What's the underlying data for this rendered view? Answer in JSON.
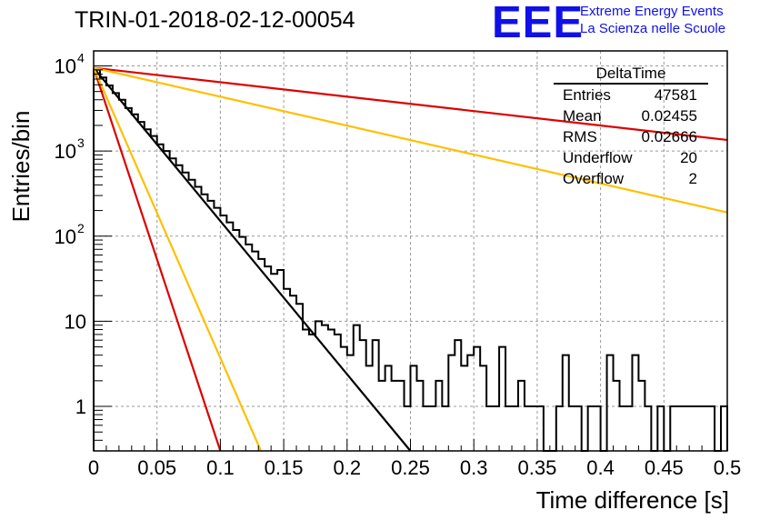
{
  "header": {
    "run_title": "TRIN-01-2018-02-12-00054",
    "logo_text": "EEE",
    "logo_line1": "Extreme Energy Events",
    "logo_line2": "La Scienza nelle Scuole",
    "logo_color": "#1010e8"
  },
  "stats_box": {
    "title": "DeltaTime",
    "rows": [
      {
        "label": "Entries",
        "value": "47581"
      },
      {
        "label": "Mean",
        "value": "0.02455"
      },
      {
        "label": "RMS",
        "value": "0.02666"
      },
      {
        "label": "Underflow",
        "value": "20"
      },
      {
        "label": "Overflow",
        "value": "2"
      }
    ]
  },
  "chart_data": {
    "type": "histogram",
    "xlabel": "Time difference [s]",
    "ylabel": "Entries/bin",
    "xlim": [
      0,
      0.5
    ],
    "ylim": [
      0.3,
      15000
    ],
    "y_scale": "log",
    "grid": true,
    "x_ticks": [
      "0",
      "0.05",
      "0.1",
      "0.15",
      "0.2",
      "0.25",
      "0.3",
      "0.35",
      "0.4",
      "0.45",
      "0.5"
    ],
    "y_ticks": [
      {
        "value": 1,
        "label": "1"
      },
      {
        "value": 10,
        "label": "10"
      },
      {
        "value": 100,
        "label": "10",
        "exp": "2"
      },
      {
        "value": 1000,
        "label": "10",
        "exp": "3"
      },
      {
        "value": 10000,
        "label": "10",
        "exp": "4"
      }
    ],
    "histogram": {
      "bin_width": 0.005,
      "color": "#000000",
      "values": [
        9000,
        7300,
        5900,
        4800,
        4000,
        3200,
        2700,
        2200,
        1800,
        1500,
        1200,
        1000,
        820,
        680,
        560,
        460,
        380,
        310,
        260,
        215,
        175,
        145,
        118,
        98,
        80,
        66,
        54,
        44,
        36,
        40,
        24,
        20,
        16,
        8,
        7,
        10,
        9,
        8,
        7,
        5,
        4,
        9,
        6,
        3,
        6,
        2,
        3,
        2,
        2,
        1,
        3,
        2,
        1,
        1,
        2,
        1,
        4,
        6,
        3,
        4,
        5,
        3,
        1,
        1,
        5,
        1,
        1,
        2,
        1,
        1,
        1,
        0,
        0,
        1,
        4,
        1,
        1,
        0,
        1,
        1,
        0,
        4,
        2,
        1,
        1,
        4,
        2,
        1,
        0,
        1,
        0,
        1,
        1,
        1,
        1,
        1,
        1,
        1,
        0,
        1
      ]
    },
    "series": [
      {
        "color": "#000000",
        "points": [
          [
            0,
            9500
          ],
          [
            0.25,
            0.3
          ]
        ]
      },
      {
        "color": "#dd0000",
        "points": [
          [
            0,
            9500
          ],
          [
            0.5,
            1350
          ]
        ]
      },
      {
        "color": "#dd0000",
        "points": [
          [
            0,
            9500
          ],
          [
            0.1,
            0.3
          ]
        ]
      },
      {
        "color": "#ffbf00",
        "points": [
          [
            0,
            9500
          ],
          [
            0.5,
            190
          ]
        ]
      },
      {
        "color": "#ffbf00",
        "points": [
          [
            0,
            9500
          ],
          [
            0.132,
            0.3
          ]
        ]
      }
    ]
  }
}
